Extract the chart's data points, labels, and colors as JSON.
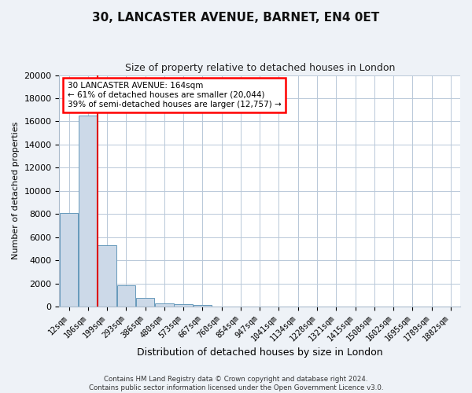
{
  "title": "30, LANCASTER AVENUE, BARNET, EN4 0ET",
  "subtitle": "Size of property relative to detached houses in London",
  "xlabel": "Distribution of detached houses by size in London",
  "ylabel": "Number of detached properties",
  "bar_labels": [
    "12sqm",
    "106sqm",
    "199sqm",
    "293sqm",
    "386sqm",
    "480sqm",
    "573sqm",
    "667sqm",
    "760sqm",
    "854sqm",
    "947sqm",
    "1041sqm",
    "1134sqm",
    "1228sqm",
    "1321sqm",
    "1415sqm",
    "1508sqm",
    "1602sqm",
    "1695sqm",
    "1789sqm",
    "1882sqm"
  ],
  "bar_heights": [
    8100,
    16500,
    5300,
    1800,
    750,
    300,
    200,
    150,
    0,
    0,
    0,
    0,
    0,
    0,
    0,
    0,
    0,
    0,
    0,
    0,
    0
  ],
  "bar_color": "#ccd9e8",
  "bar_edge_color": "#6699bb",
  "vline_color": "#dd0000",
  "annotation_line1": "30 LANCASTER AVENUE: 164sqm",
  "annotation_line2": "← 61% of detached houses are smaller (20,044)",
  "annotation_line3": "39% of semi-detached houses are larger (12,757) →",
  "ylim": [
    0,
    20000
  ],
  "yticks": [
    0,
    2000,
    4000,
    6000,
    8000,
    10000,
    12000,
    14000,
    16000,
    18000,
    20000
  ],
  "footer_line1": "Contains HM Land Registry data © Crown copyright and database right 2024.",
  "footer_line2": "Contains public sector information licensed under the Open Government Licence v3.0.",
  "fig_bg_color": "#eef2f7",
  "plot_bg_color": "#ffffff",
  "grid_color": "#b8c8d8"
}
